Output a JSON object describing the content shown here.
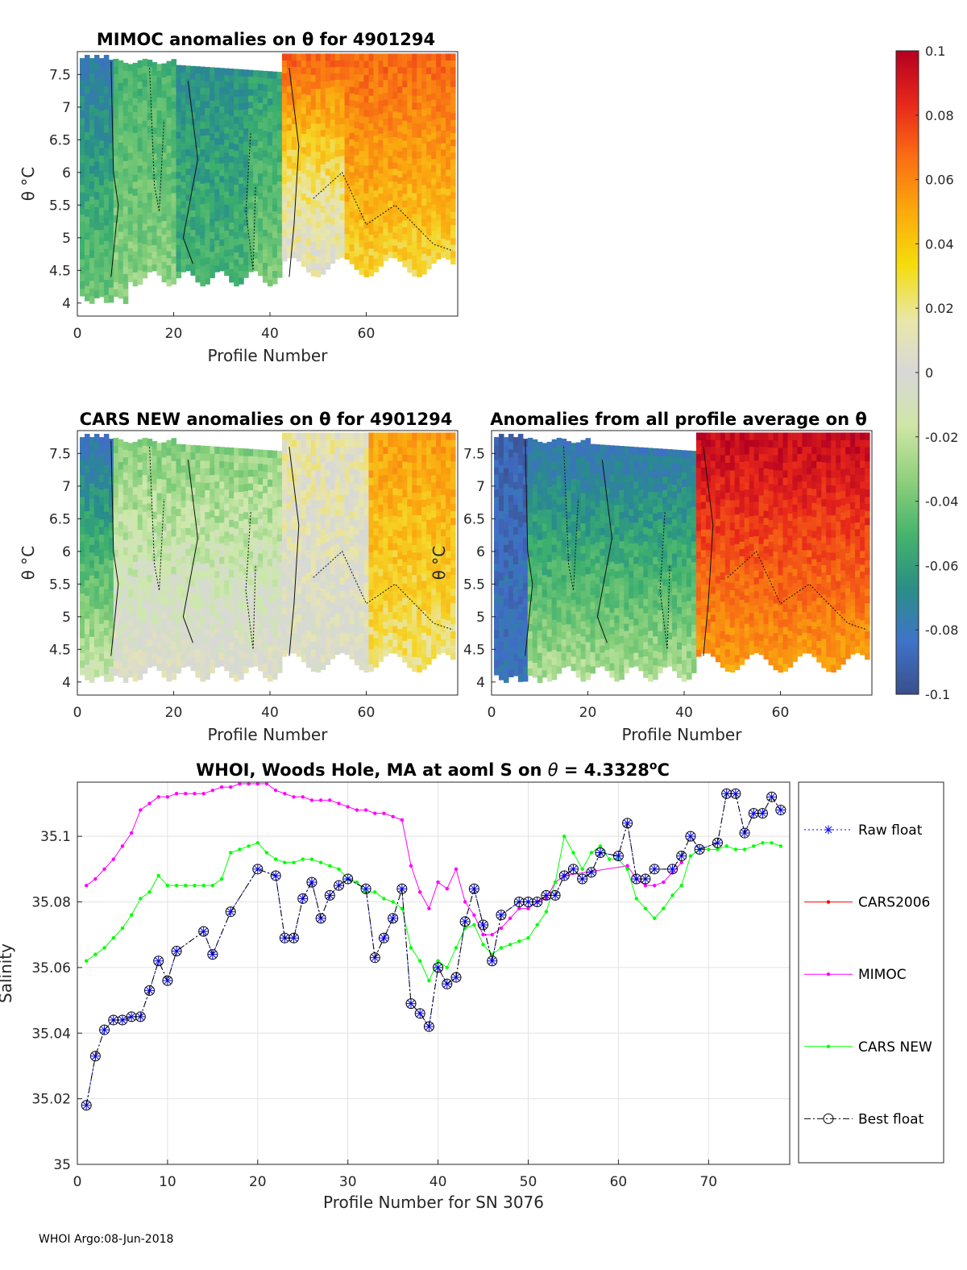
{
  "footer": "WHOI Argo:08-Jun-2018",
  "panels": [
    {
      "id": "mimoc",
      "title": "MIMOC anomalies on θ  for 4901294",
      "xlabel": "Profile Number",
      "ylabel": "θ °C",
      "xticks": [
        "0",
        "20",
        "40",
        "60"
      ],
      "yticks": [
        "4",
        "4.5",
        "5",
        "5.5",
        "6",
        "6.5",
        "7",
        "7.5"
      ]
    },
    {
      "id": "cars",
      "title": "CARS NEW anomalies on θ for 4901294",
      "xlabel": "Profile Number",
      "ylabel": "θ °C",
      "xticks": [
        "0",
        "20",
        "40",
        "60"
      ],
      "yticks": [
        "4",
        "4.5",
        "5",
        "5.5",
        "6",
        "6.5",
        "7",
        "7.5"
      ]
    },
    {
      "id": "avg",
      "title": "Anomalies from all profile average on θ",
      "xlabel": "Profile Number",
      "ylabel": "θ °C",
      "xticks": [
        "0",
        "20",
        "40",
        "60"
      ],
      "yticks": [
        "4",
        "4.5",
        "5",
        "5.5",
        "6",
        "6.5",
        "7",
        "7.5"
      ]
    }
  ],
  "colorbar": {
    "ticks": [
      "0.1",
      "0.08",
      "0.06",
      "0.04",
      "0.02",
      "0",
      "-0.02",
      "-0.04",
      "-0.06",
      "-0.08",
      "-0.1"
    ],
    "colors": [
      "#b40021",
      "#e8281a",
      "#fb6f12",
      "#fbaa0c",
      "#f5dc0c",
      "#e9e7a7",
      "#d8d8d8",
      "#cfe6a6",
      "#8fd07c",
      "#47b56c",
      "#2a8f85",
      "#3f74c9",
      "#3a4f8c"
    ]
  },
  "chart_data": [
    {
      "type": "heatmap",
      "title": "MIMOC anomalies on θ  for 4901294",
      "xlabel": "Profile Number",
      "ylabel": "θ °C",
      "xlim": [
        0,
        79
      ],
      "ylim": [
        3.8,
        7.85
      ],
      "clim": [
        -0.1,
        0.1
      ],
      "summary": "Negative anomalies (blue/green) for profiles 1-42; positive anomalies (yellow/orange/red) for profiles 43-78, strongest near θ = 7-7.8 °C.",
      "anomaly_by_profile_group": [
        {
          "profiles": "1-7",
          "anomaly": -0.08
        },
        {
          "profiles": "8-20",
          "anomaly": -0.03
        },
        {
          "profiles": "21-35",
          "anomaly": -0.05
        },
        {
          "profiles": "36-42",
          "anomaly": -0.04
        },
        {
          "profiles": "43-55",
          "anomaly": 0.02
        },
        {
          "profiles": "56-78",
          "anomaly": 0.04
        }
      ]
    },
    {
      "type": "heatmap",
      "title": "CARS NEW anomalies on θ for 4901294",
      "xlabel": "Profile Number",
      "ylabel": "θ °C",
      "xlim": [
        0,
        79
      ],
      "ylim": [
        3.8,
        7.85
      ],
      "clim": [
        -0.1,
        0.1
      ],
      "summary": "Mostly near-zero (grey) anomalies; negative at the warm end for profiles 1-42, weakly positive beyond profile 60.",
      "anomaly_by_profile_group": [
        {
          "profiles": "1-7",
          "anomaly": -0.07
        },
        {
          "profiles": "8-42",
          "anomaly": -0.03
        },
        {
          "profiles": "43-78",
          "anomaly": 0.01
        }
      ]
    },
    {
      "type": "heatmap",
      "title": "Anomalies from all profile average on θ",
      "xlabel": "Profile Number",
      "ylabel": "θ °C",
      "xlim": [
        0,
        79
      ],
      "ylim": [
        3.8,
        7.85
      ],
      "clim": [
        -0.1,
        0.1
      ],
      "summary": "Strong negative anomalies (blue) for profiles 1-42, strong positive anomalies (red/orange) for profiles 43-78.",
      "anomaly_by_profile_group": [
        {
          "profiles": "1-7",
          "anomaly": -0.09
        },
        {
          "profiles": "8-42",
          "anomaly": -0.06
        },
        {
          "profiles": "43-78",
          "anomaly": 0.07
        }
      ]
    },
    {
      "type": "line",
      "title": "WHOI, Woods Hole, MA at aoml S on θ = 4.3328°C",
      "title_parts": {
        "main": "WHOI, Woods Hole, MA at aoml S on ",
        "theta": "θ",
        "eq": " = 4.3328",
        "sup": "o",
        "unit": "C"
      },
      "xlabel": "Profile Number for SN 3076",
      "ylabel": "Salinity",
      "xlim": [
        0,
        79
      ],
      "ylim": [
        35,
        35.1165
      ],
      "xticks": [
        "0",
        "10",
        "20",
        "30",
        "40",
        "50",
        "60",
        "70"
      ],
      "yticks": [
        "35",
        "35.02",
        "35.04",
        "35.06",
        "35.08",
        "35.1"
      ],
      "series": [
        {
          "name": "Raw float",
          "color": "#0000ff",
          "marker": "asterisk",
          "line": "dotted",
          "x": [
            1,
            2,
            3,
            4,
            5,
            6,
            7,
            8,
            9,
            10,
            11,
            14,
            15,
            17,
            20,
            22,
            23,
            24,
            25,
            26,
            27,
            28,
            29,
            30,
            32,
            33,
            34,
            35,
            36,
            37,
            38,
            39,
            40,
            41,
            42,
            43,
            44,
            45,
            46,
            47,
            49,
            50,
            51,
            52,
            53,
            54,
            55,
            56,
            57,
            58,
            60,
            61,
            62,
            63,
            64,
            66,
            67,
            68,
            69,
            71,
            72,
            73,
            74,
            75,
            76,
            77,
            78
          ],
          "values": [
            35.018,
            35.033,
            35.041,
            35.044,
            35.044,
            35.045,
            35.045,
            35.053,
            35.062,
            35.056,
            35.065,
            35.071,
            35.064,
            35.077,
            35.09,
            35.088,
            35.069,
            35.069,
            35.081,
            35.086,
            35.075,
            35.082,
            35.085,
            35.087,
            35.084,
            35.063,
            35.069,
            35.075,
            35.084,
            35.049,
            35.046,
            35.042,
            35.06,
            35.055,
            35.057,
            35.074,
            35.084,
            35.073,
            35.062,
            35.076,
            35.08,
            35.08,
            35.08,
            35.082,
            35.082,
            35.088,
            35.09,
            35.087,
            35.089,
            35.095,
            35.094,
            35.104,
            35.087,
            35.087,
            35.09,
            35.09,
            35.094,
            35.1,
            35.096,
            35.098,
            35.113,
            35.113,
            35.101,
            35.107,
            35.107,
            35.112,
            35.108
          ]
        },
        {
          "name": "CARS2006",
          "color": "#ff0000",
          "marker": "dot",
          "line": "solid",
          "x": [],
          "values": []
        },
        {
          "name": "MIMOC",
          "color": "#ff00ff",
          "marker": "dot",
          "line": "solid",
          "x": [
            1,
            2,
            3,
            4,
            5,
            6,
            7,
            8,
            9,
            10,
            11,
            12,
            13,
            14,
            15,
            16,
            17,
            18,
            19,
            20,
            21,
            22,
            23,
            24,
            25,
            26,
            27,
            28,
            29,
            30,
            31,
            32,
            33,
            34,
            35,
            36,
            37,
            38,
            39,
            40,
            41,
            42,
            43,
            44,
            45,
            46,
            47,
            48,
            49,
            50,
            51,
            52,
            53,
            54,
            61,
            62,
            63,
            64,
            65,
            66,
            67
          ],
          "values": [
            35.085,
            35.087,
            35.09,
            35.093,
            35.097,
            35.101,
            35.108,
            35.11,
            35.112,
            35.112,
            35.113,
            35.113,
            35.113,
            35.113,
            35.114,
            35.115,
            35.115,
            35.116,
            35.116,
            35.116,
            35.116,
            35.114,
            35.113,
            35.112,
            35.112,
            35.111,
            35.111,
            35.111,
            35.11,
            35.109,
            35.108,
            35.108,
            35.107,
            35.107,
            35.106,
            35.105,
            35.091,
            35.083,
            35.078,
            35.086,
            35.084,
            35.09,
            35.08,
            35.076,
            35.07,
            35.07,
            35.072,
            35.075,
            35.078,
            35.078,
            35.08,
            35.081,
            35.086,
            35.088,
            35.091,
            35.087,
            35.085,
            35.085,
            35.086,
            35.089,
            35.092
          ]
        },
        {
          "name": "CARS NEW",
          "color": "#00ff00",
          "marker": "dot",
          "line": "solid",
          "x": [
            1,
            2,
            3,
            4,
            5,
            6,
            7,
            8,
            9,
            10,
            11,
            12,
            13,
            14,
            15,
            16,
            17,
            18,
            19,
            20,
            21,
            22,
            23,
            24,
            25,
            26,
            27,
            28,
            29,
            30,
            31,
            32,
            33,
            34,
            35,
            36,
            37,
            38,
            39,
            40,
            41,
            42,
            43,
            44,
            45,
            46,
            47,
            48,
            49,
            50,
            51,
            52,
            53,
            54,
            55,
            56,
            57,
            58,
            59,
            60,
            61,
            62,
            63,
            64,
            65,
            66,
            67,
            68,
            69,
            70,
            71,
            72,
            73,
            74,
            75,
            76,
            77,
            78
          ],
          "values": [
            35.062,
            35.064,
            35.066,
            35.069,
            35.072,
            35.076,
            35.081,
            35.083,
            35.088,
            35.085,
            35.085,
            35.085,
            35.085,
            35.085,
            35.085,
            35.087,
            35.095,
            35.096,
            35.097,
            35.098,
            35.095,
            35.093,
            35.092,
            35.092,
            35.093,
            35.093,
            35.092,
            35.091,
            35.09,
            35.087,
            35.086,
            35.083,
            35.083,
            35.081,
            35.08,
            35.078,
            35.066,
            35.062,
            35.056,
            35.062,
            35.06,
            35.066,
            35.072,
            35.073,
            35.067,
            35.064,
            35.066,
            35.067,
            35.068,
            35.069,
            35.073,
            35.077,
            35.086,
            35.1,
            35.095,
            35.09,
            35.095,
            35.097,
            35.093,
            35.093,
            35.09,
            35.081,
            35.078,
            35.075,
            35.078,
            35.082,
            35.085,
            35.094,
            35.096,
            35.096,
            35.096,
            35.097,
            35.096,
            35.096,
            35.097,
            35.098,
            35.098,
            35.097
          ]
        },
        {
          "name": "Best float",
          "color": "#000000",
          "marker": "circle",
          "line": "dashdot",
          "x": [
            1,
            2,
            3,
            4,
            5,
            6,
            7,
            8,
            9,
            10,
            11,
            14,
            15,
            17,
            20,
            22,
            23,
            24,
            25,
            26,
            27,
            28,
            29,
            30,
            32,
            33,
            34,
            35,
            36,
            37,
            38,
            39,
            40,
            41,
            42,
            43,
            44,
            45,
            46,
            47,
            49,
            50,
            51,
            52,
            53,
            54,
            55,
            56,
            57,
            58,
            60,
            61,
            62,
            63,
            64,
            66,
            67,
            68,
            69,
            71,
            72,
            73,
            74,
            75,
            76,
            77,
            78
          ],
          "values": [
            35.018,
            35.033,
            35.041,
            35.044,
            35.044,
            35.045,
            35.045,
            35.053,
            35.062,
            35.056,
            35.065,
            35.071,
            35.064,
            35.077,
            35.09,
            35.088,
            35.069,
            35.069,
            35.081,
            35.086,
            35.075,
            35.082,
            35.085,
            35.087,
            35.084,
            35.063,
            35.069,
            35.075,
            35.084,
            35.049,
            35.046,
            35.042,
            35.06,
            35.055,
            35.057,
            35.074,
            35.084,
            35.073,
            35.062,
            35.076,
            35.08,
            35.08,
            35.08,
            35.082,
            35.082,
            35.088,
            35.09,
            35.087,
            35.089,
            35.095,
            35.094,
            35.104,
            35.087,
            35.087,
            35.09,
            35.09,
            35.094,
            35.1,
            35.096,
            35.098,
            35.113,
            35.113,
            35.101,
            35.107,
            35.107,
            35.112,
            35.108
          ]
        }
      ]
    }
  ]
}
